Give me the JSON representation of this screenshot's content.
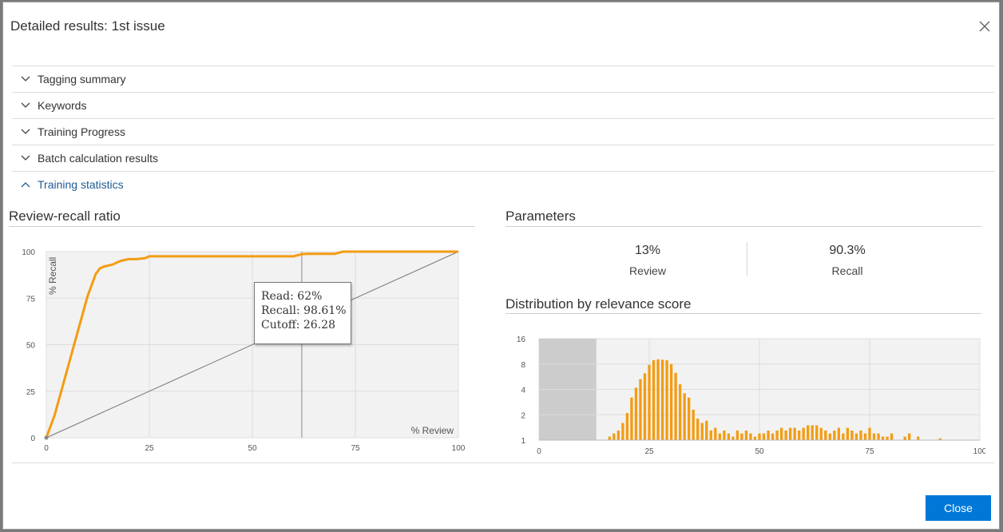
{
  "dialog": {
    "title": "Detailed results: 1st issue",
    "close_icon": "close-icon"
  },
  "sections": [
    {
      "label": "Tagging summary",
      "expanded": false,
      "icon": "chevron-down-icon"
    },
    {
      "label": "Keywords",
      "expanded": false,
      "icon": "chevron-down-icon"
    },
    {
      "label": "Training Progress",
      "expanded": false,
      "icon": "chevron-down-icon"
    },
    {
      "label": "Batch calculation results",
      "expanded": false,
      "icon": "chevron-down-icon"
    },
    {
      "label": "Training statistics",
      "expanded": true,
      "icon": "chevron-up-icon"
    }
  ],
  "review_recall": {
    "heading": "Review-recall ratio",
    "tooltip": {
      "read": "Read: 62%",
      "recall": "Recall: 98.61%",
      "cutoff": "Cutoff: 26.28"
    }
  },
  "parameters": {
    "heading": "Parameters",
    "review_value": "13%",
    "review_label": "Review",
    "recall_value": "90.3%",
    "recall_label": "Recall"
  },
  "distribution": {
    "heading": "Distribution by relevance score"
  },
  "footer": {
    "close_label": "Close"
  },
  "colors": {
    "accent": "#f39c12",
    "primary_button": "#0078d7",
    "link": "#1f5b92"
  },
  "chart_data": [
    {
      "type": "line",
      "xlabel": "% Review",
      "ylabel": "% Recall",
      "xlim": [
        0,
        100
      ],
      "ylim": [
        0,
        100
      ],
      "x_ticks": [
        "0",
        "25",
        "50",
        "75",
        "100"
      ],
      "y_ticks": [
        "0",
        "25",
        "50",
        "75",
        "100"
      ],
      "grid": true,
      "cursor_x": 62,
      "series": [
        {
          "x": [
            0,
            2,
            4,
            6,
            8,
            10,
            12,
            13,
            14,
            15,
            16,
            17,
            18,
            19,
            20,
            22,
            24,
            25,
            30,
            40,
            50,
            60,
            62,
            63,
            70,
            72,
            75,
            80,
            90,
            100
          ],
          "y": [
            0,
            12,
            28,
            44,
            60,
            76,
            88,
            91,
            92,
            92.5,
            93,
            94,
            95,
            95.5,
            96,
            96,
            96.5,
            97.5,
            97.5,
            97.5,
            97.5,
            97.5,
            98.61,
            98.8,
            98.8,
            100,
            100,
            100,
            100,
            100
          ]
        },
        {
          "x": [
            0,
            100
          ],
          "y": [
            0,
            100
          ]
        }
      ]
    },
    {
      "type": "bar",
      "xlim": [
        0,
        100
      ],
      "x_ticks": [
        "0",
        "25",
        "50",
        "75",
        "100"
      ],
      "y_ticks": [
        "1",
        "2",
        "4",
        "8",
        "16"
      ],
      "y_scale": "log",
      "grid": true,
      "shaded_range": [
        0,
        13
      ],
      "x": [
        16,
        17,
        18,
        19,
        20,
        21,
        22,
        23,
        24,
        25,
        26,
        27,
        28,
        29,
        30,
        31,
        32,
        33,
        34,
        35,
        36,
        37,
        38,
        39,
        40,
        41,
        42,
        43,
        44,
        45,
        46,
        47,
        48,
        49,
        50,
        51,
        52,
        53,
        54,
        55,
        56,
        57,
        58,
        59,
        60,
        61,
        62,
        63,
        64,
        65,
        66,
        67,
        68,
        69,
        70,
        71,
        72,
        73,
        74,
        75,
        76,
        77,
        78,
        79,
        80,
        83,
        84,
        86,
        91
      ],
      "values": [
        1.1,
        1.2,
        1.3,
        1.6,
        2.1,
        3.2,
        4.2,
        5.3,
        6.2,
        7.8,
        8.9,
        9.1,
        9.0,
        8.9,
        8.0,
        6.3,
        4.6,
        3.6,
        3.2,
        2.3,
        1.8,
        1.6,
        1.7,
        1.3,
        1.4,
        1.2,
        1.3,
        1.2,
        1.1,
        1.3,
        1.2,
        1.3,
        1.2,
        1.1,
        1.2,
        1.2,
        1.3,
        1.2,
        1.3,
        1.4,
        1.3,
        1.4,
        1.4,
        1.3,
        1.4,
        1.5,
        1.5,
        1.5,
        1.4,
        1.3,
        1.2,
        1.3,
        1.4,
        1.2,
        1.4,
        1.3,
        1.2,
        1.3,
        1.2,
        1.4,
        1.2,
        1.2,
        1.1,
        1.1,
        1.2,
        1.1,
        1.2,
        1.1,
        1.05
      ]
    }
  ]
}
